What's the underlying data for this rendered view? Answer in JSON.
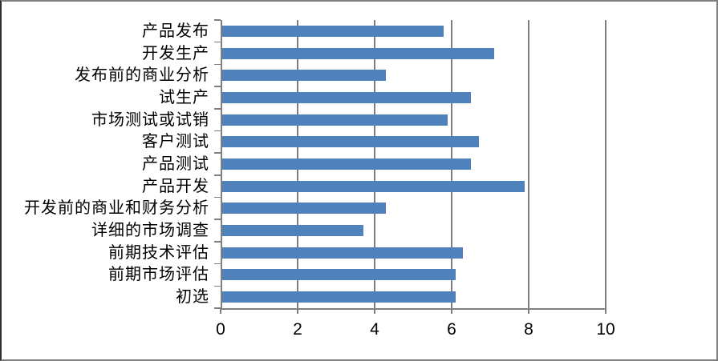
{
  "chart_data": {
    "type": "bar",
    "orientation": "horizontal",
    "title": "",
    "xlabel": "",
    "ylabel": "",
    "categories": [
      "产品发布",
      "开发生产",
      "发布前的商业分析",
      "试生产",
      "市场测试或试销",
      "客户测试",
      "产品测试",
      "产品开发",
      "开发前的商业和财务分析",
      "详细的市场调查",
      "前期技术评估",
      "前期市场评估",
      "初选"
    ],
    "values": [
      5.8,
      7.1,
      4.3,
      6.5,
      5.9,
      6.7,
      6.5,
      7.9,
      4.3,
      3.7,
      6.3,
      6.1,
      6.1
    ],
    "xlim": [
      0,
      10
    ],
    "xticks": [
      0,
      2,
      4,
      6,
      8,
      10
    ],
    "grid": true,
    "legend": "none",
    "bar_color": "#4f81bd",
    "grid_color": "#7f7f7f",
    "axis_color": "#7f7f7f",
    "label_color": "#000000",
    "background_color": "#ffffff"
  }
}
